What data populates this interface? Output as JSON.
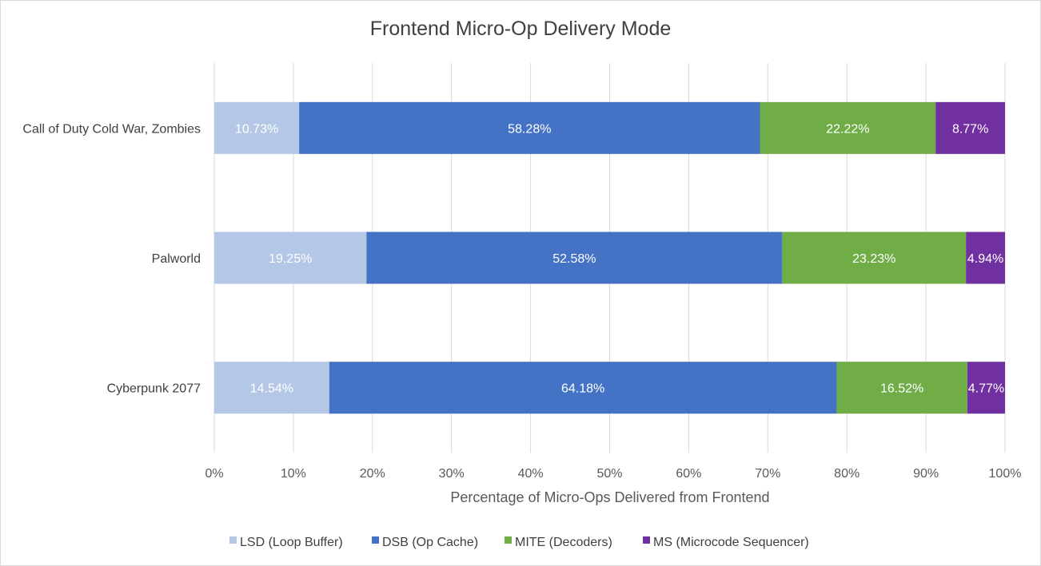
{
  "chart_data": {
    "type": "bar",
    "orientation": "horizontal",
    "stacked": "percent",
    "title": "Frontend Micro-Op Delivery Mode",
    "xlabel": "Percentage of Micro-Ops Delivered from Frontend",
    "ylabel": "",
    "xlim": [
      0,
      100
    ],
    "x_ticks": [
      "0%",
      "10%",
      "20%",
      "30%",
      "40%",
      "50%",
      "60%",
      "70%",
      "80%",
      "90%",
      "100%"
    ],
    "grid": "vertical",
    "legend_position": "bottom",
    "categories": [
      "Call of Duty Cold War, Zombies",
      "Palworld",
      "Cyberpunk 2077"
    ],
    "series": [
      {
        "name": "LSD (Loop Buffer)",
        "color": "#b4c7e7",
        "values": [
          10.73,
          19.25,
          14.54
        ],
        "labels": [
          "10.73%",
          "19.25%",
          "14.54%"
        ]
      },
      {
        "name": "DSB (Op Cache)",
        "color": "#4472c4",
        "values": [
          58.28,
          52.58,
          64.18
        ],
        "labels": [
          "58.28%",
          "52.58%",
          "64.18%"
        ]
      },
      {
        "name": "MITE (Decoders)",
        "color": "#70ad47",
        "values": [
          22.22,
          23.23,
          16.52
        ],
        "labels": [
          "22.22%",
          "23.23%",
          "16.52%"
        ]
      },
      {
        "name": "MS (Microcode Sequencer)",
        "color": "#7030a0",
        "values": [
          8.77,
          4.94,
          4.77
        ],
        "labels": [
          "8.77%",
          "4.94%",
          "4.77%"
        ]
      }
    ]
  }
}
